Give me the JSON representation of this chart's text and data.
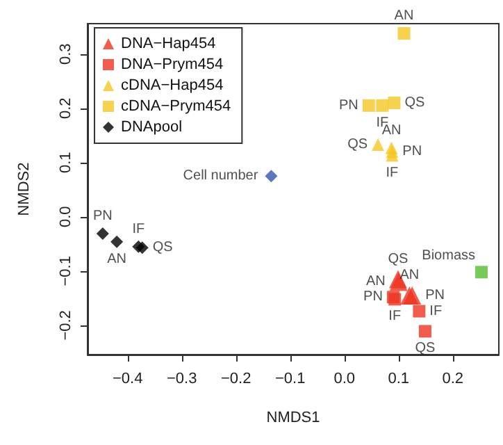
{
  "chart_data": {
    "type": "scatter",
    "xlabel": "NMDS1",
    "ylabel": "NMDS2",
    "xlim": [
      -0.474,
      0.285
    ],
    "xticks": [
      -0.4,
      -0.3,
      -0.2,
      -0.1,
      {
        "value": 0,
        "label": "0.0"
      },
      0.1,
      0.2
    ],
    "ylim": [
      -0.254,
      0.356
    ],
    "yticks": [
      -0.2,
      -0.1,
      {
        "value": 0,
        "label": "0.0"
      },
      0.1,
      0.2,
      0.3
    ],
    "grid": false,
    "legend": "top left",
    "series": [
      {
        "name": "DNA−Hap454",
        "color": "#ee3322",
        "marker": "triangle",
        "x": [
          0.1,
          0.125,
          0.12,
          0.099
        ],
        "values": [
          -0.12,
          -0.145,
          -0.145,
          -0.115
        ],
        "value_labels": [
          "AN",
          "PN",
          "AN",
          "QS"
        ]
      },
      {
        "name": "DNA−Prym454",
        "color": "#ee3322",
        "marker": "square",
        "x": [
          0.09,
          0.093,
          0.138,
          0.149
        ],
        "values": [
          -0.148,
          -0.152,
          -0.174,
          -0.211
        ],
        "value_labels": [
          "PN",
          "IF",
          "IF",
          "QS"
        ]
      },
      {
        "name": "cDNA−Hap454",
        "color": "#f5c722",
        "marker": "triangle",
        "x": [
          0.087,
          0.088,
          0.088,
          0.062
        ],
        "values": [
          0.127,
          0.12,
          0.113,
          0.133
        ],
        "value_labels": [
          "AN",
          "PN",
          "IF",
          "QS"
        ]
      },
      {
        "name": "cDNA−Prym454",
        "color": "#f5c722",
        "marker": "square",
        "x": [
          0.11,
          0.045,
          0.07,
          0.092
        ],
        "values": [
          0.338,
          0.205,
          0.205,
          0.21
        ],
        "value_labels": [
          "AN",
          "PN",
          "IF",
          "QS"
        ]
      },
      {
        "name": "DNApool",
        "color": "#000000",
        "marker": "diamond",
        "x": [
          -0.42,
          -0.446,
          -0.38,
          -0.373
        ],
        "values": [
          -0.046,
          -0.031,
          -0.055,
          -0.057
        ],
        "value_labels": [
          "AN",
          "PN",
          "IF",
          "QS"
        ]
      },
      {
        "color": "#3355aa",
        "marker": "diamond",
        "x": [
          -0.135
        ],
        "values": [
          0.075
        ],
        "value_labels": [
          "Cell number"
        ]
      },
      {
        "color": "#55bb33",
        "marker": "square",
        "x": [
          0.253
        ],
        "values": [
          -0.102
        ],
        "value_labels": [
          "Biomass"
        ]
      }
    ]
  }
}
